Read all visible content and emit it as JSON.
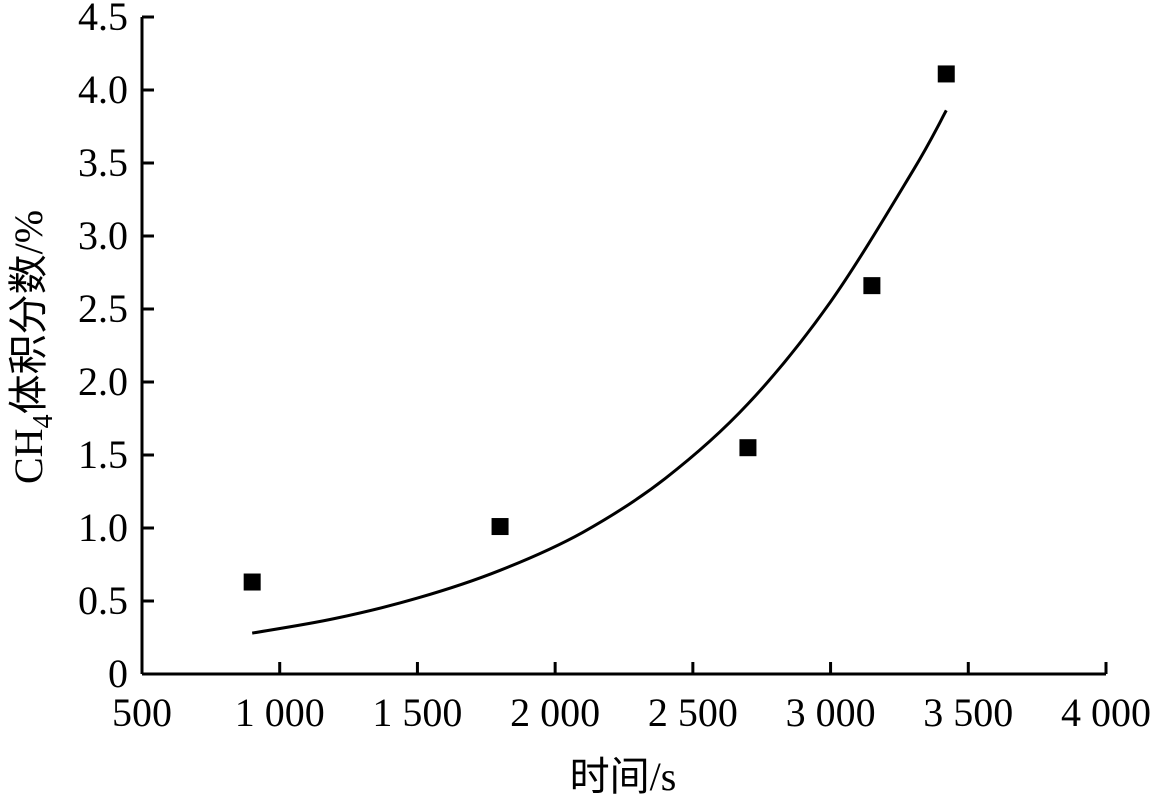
{
  "chart_data": {
    "type": "scatter",
    "title": "",
    "xlabel": "时间/s",
    "ylabel_parts": {
      "pre": "CH",
      "sub": "4",
      "post": "体积分数/%"
    },
    "xlim": [
      500,
      4000
    ],
    "ylim": [
      0,
      4.5
    ],
    "x_ticks": [
      500,
      1000,
      1500,
      2000,
      2500,
      3000,
      3500,
      4000
    ],
    "x_tick_labels": [
      "500",
      "1 000",
      "1 500",
      "2 000",
      "2 500",
      "3 000",
      "3 500",
      "4 000"
    ],
    "y_ticks": [
      0,
      0.5,
      1.0,
      1.5,
      2.0,
      2.5,
      3.0,
      3.5,
      4.0,
      4.5
    ],
    "y_tick_labels": [
      "0",
      "0.5",
      "1.0",
      "1.5",
      "2.0",
      "2.5",
      "3.0",
      "3.5",
      "4.0",
      "4.5"
    ],
    "grid": false,
    "points": [
      {
        "x": 900,
        "y": 0.63
      },
      {
        "x": 1800,
        "y": 1.01
      },
      {
        "x": 2700,
        "y": 1.55
      },
      {
        "x": 3150,
        "y": 2.66
      },
      {
        "x": 3420,
        "y": 4.11
      }
    ],
    "fit_curve": {
      "x": [
        900,
        1200,
        1500,
        1800,
        2100,
        2400,
        2700,
        3000,
        3300,
        3420
      ],
      "y": [
        0.28,
        0.38,
        0.52,
        0.71,
        0.97,
        1.34,
        1.85,
        2.55,
        3.45,
        3.86
      ]
    },
    "colors": {
      "marker": "#000000",
      "line": "#000000",
      "axis": "#000000"
    }
  }
}
